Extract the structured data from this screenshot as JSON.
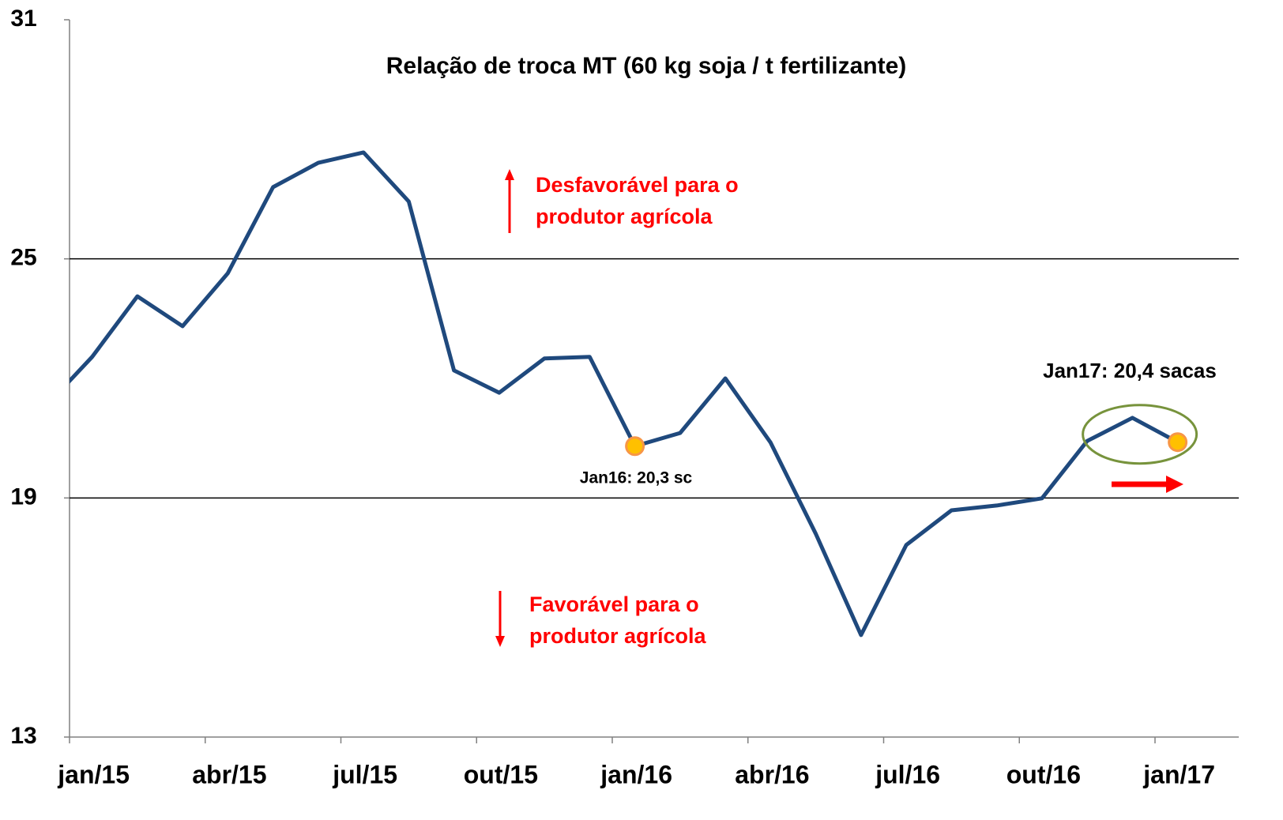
{
  "chart_data": {
    "type": "line",
    "title": "Relação de troca MT (60 kg soja / t fertilizante)",
    "categories": [
      null,
      "jan/15",
      null,
      null,
      "abr/15",
      null,
      null,
      "jul/15",
      null,
      null,
      "out/15",
      null,
      null,
      "jan/16",
      null,
      null,
      "abr/16",
      null,
      null,
      "jul/16",
      null,
      null,
      "out/16",
      null,
      null,
      "jan/17"
    ],
    "series": [
      {
        "name": "Relação de troca MT",
        "color": "#1f497d",
        "values": [
          21.33,
          22.54,
          24.06,
          23.31,
          24.64,
          26.8,
          27.41,
          27.67,
          26.44,
          22.2,
          21.64,
          22.5,
          22.54,
          20.3,
          20.63,
          22.0,
          20.39,
          18.1,
          15.56,
          17.82,
          18.69,
          18.81,
          18.99,
          20.43,
          21.01,
          20.4
        ]
      }
    ],
    "ylim": [
      13,
      31
    ],
    "yticks": [
      13,
      19,
      25,
      31
    ],
    "grid": true,
    "annotations": {
      "unfavorable": [
        "Desfavorável para o",
        "produtor agrícola"
      ],
      "favorable": [
        "Favorável para o",
        "produtor agrícola"
      ],
      "jan16": "Jan16: 20,3 sc",
      "jan17": "Jan17: 20,4 sacas"
    }
  }
}
